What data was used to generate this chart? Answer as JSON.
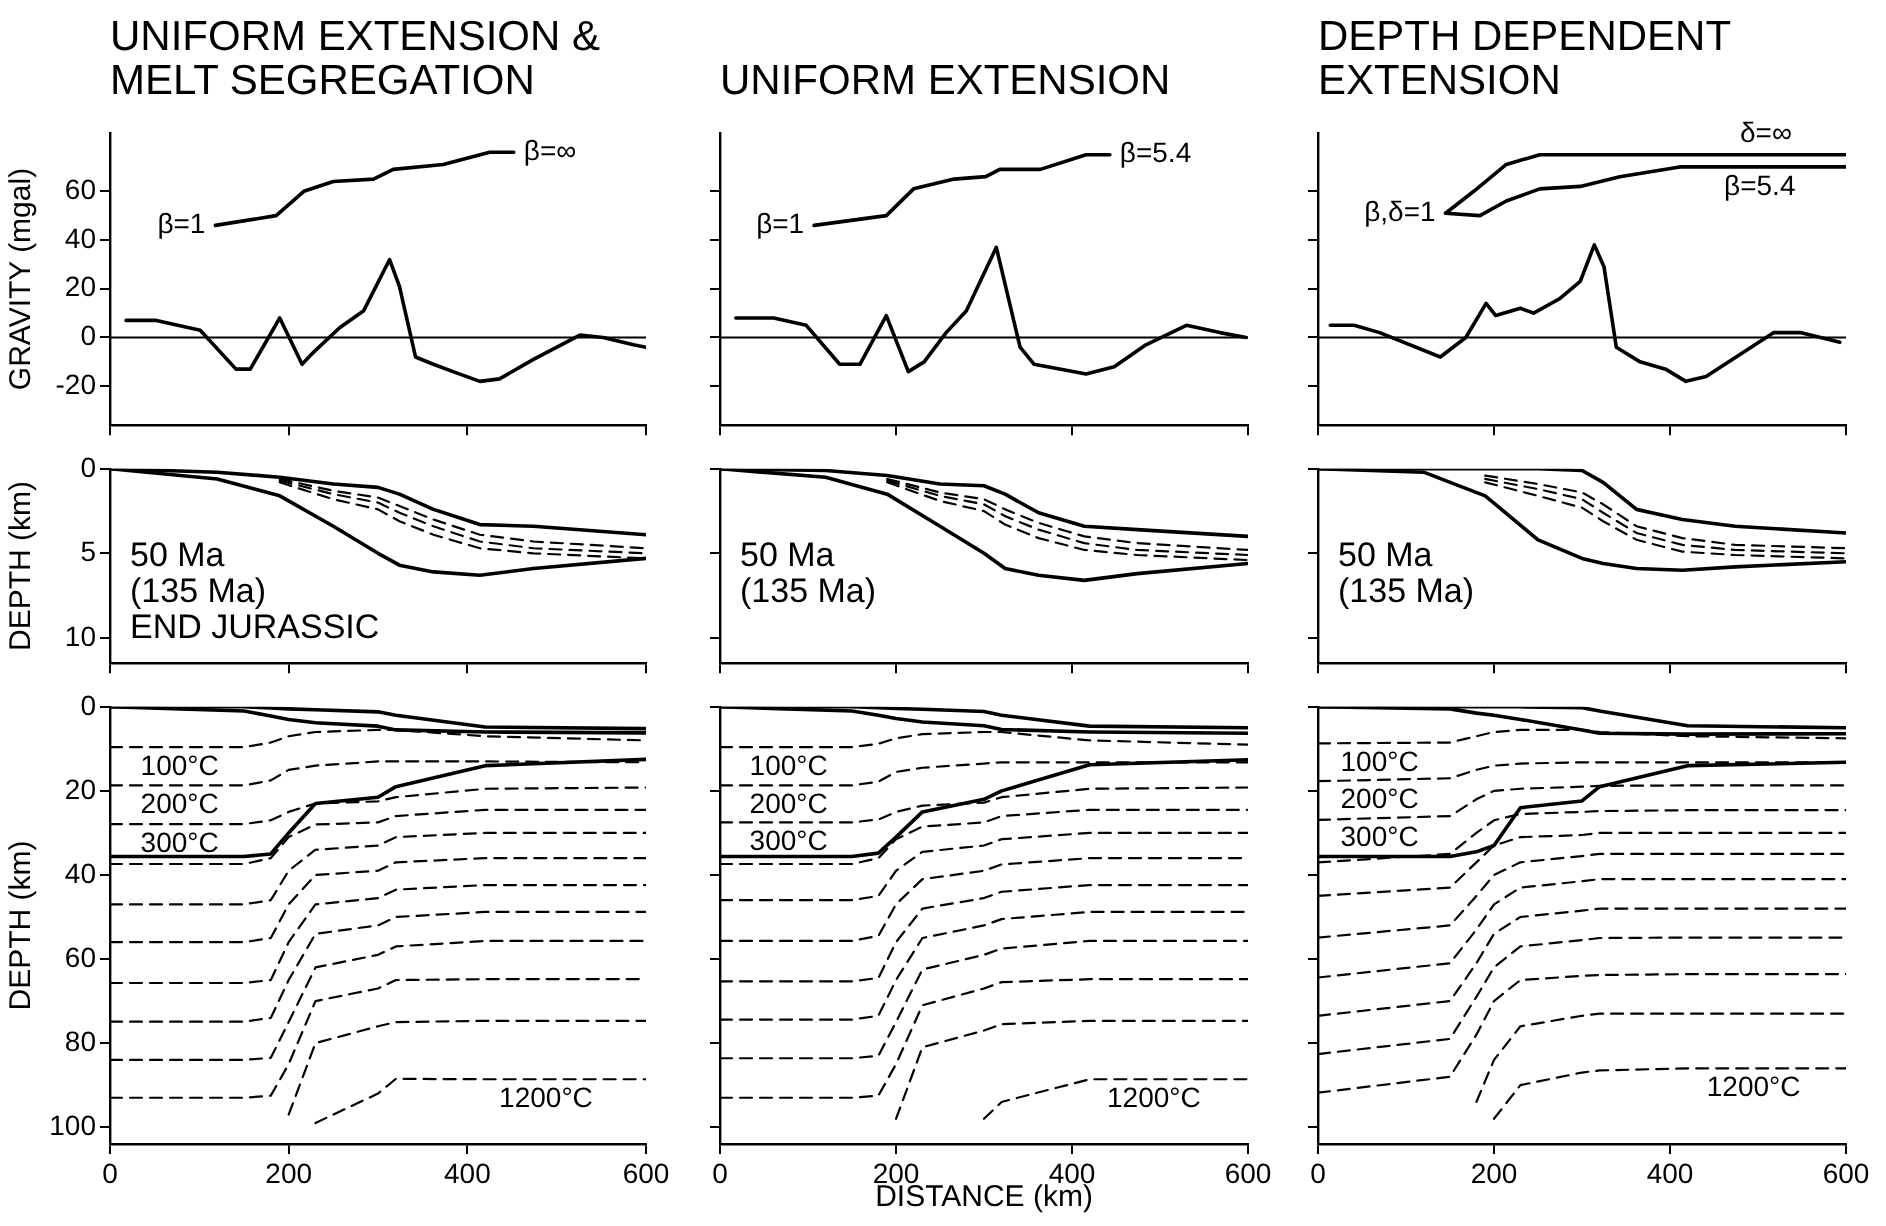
{
  "chart_data": [
    {
      "type": "line",
      "title": "UNIFORM EXTENSION & MELT SEGREGATION",
      "ylabel": "GRAVITY (mgal)",
      "xlim": [
        0,
        600
      ],
      "ylim": [
        -36,
        84
      ],
      "xticks": [
        0,
        200,
        400,
        600
      ],
      "yticks": [
        -20,
        0,
        20,
        40,
        60
      ],
      "tick_labels": "y",
      "ref_lines": [
        {
          "axis": "y",
          "value": 0,
          "color": "#000000"
        }
      ],
      "annotations": [
        {
          "text": "β=1",
          "x": 118,
          "y": 46
        },
        {
          "text": "β=∞",
          "x": 452,
          "y": 76
        }
      ],
      "series": [
        {
          "color": "#000000",
          "line_style": "solid",
          "x": [
            118,
            186,
            217,
            250,
            295,
            317,
            373,
            425,
            452
          ],
          "values": [
            46,
            50,
            60,
            64,
            65,
            69,
            71,
            76,
            76
          ]
        },
        {
          "color": "#000000",
          "line_style": "solid",
          "x": [
            18,
            52,
            101,
            141,
            157,
            190,
            215,
            228,
            257,
            284,
            313,
            324,
            342,
            362,
            384,
            414,
            436,
            474,
            526,
            552,
            586,
            600
          ],
          "values": [
            7,
            7,
            3,
            -13,
            -13,
            8,
            -11,
            -6,
            4,
            11,
            32,
            21,
            -8,
            -11,
            -14,
            -18,
            -17,
            -9,
            1,
            0,
            -3,
            -4
          ]
        }
      ]
    },
    {
      "type": "line",
      "title": "UNIFORM EXTENSION",
      "xlim": [
        0,
        600
      ],
      "ylim": [
        -36,
        84
      ],
      "xticks": [
        0,
        200,
        400,
        600
      ],
      "yticks": [
        -20,
        0,
        20,
        40,
        60
      ],
      "tick_labels": false,
      "ref_lines": [
        {
          "axis": "y",
          "value": 0,
          "color": "#000000"
        }
      ],
      "annotations": [
        {
          "text": "β=1",
          "x": 107,
          "y": 46
        },
        {
          "text": "β=5.4",
          "x": 443,
          "y": 75
        }
      ],
      "series": [
        {
          "color": "#000000",
          "line_style": "solid",
          "x": [
            107,
            189,
            220,
            266,
            302,
            318,
            364,
            416,
            443
          ],
          "values": [
            46,
            50,
            61,
            65,
            66,
            69,
            69,
            75,
            75
          ]
        },
        {
          "color": "#000000",
          "line_style": "solid",
          "x": [
            18,
            61,
            98,
            136,
            159,
            189,
            214,
            232,
            257,
            280,
            314,
            341,
            357,
            416,
            448,
            484,
            530,
            568,
            598
          ],
          "values": [
            8,
            8,
            5,
            -11,
            -11,
            9,
            -14,
            -10,
            2,
            11,
            37,
            -4,
            -11,
            -15,
            -12,
            -3,
            5,
            2,
            0
          ]
        }
      ]
    },
    {
      "type": "line",
      "title": "DEPTH DEPENDENT EXTENSION",
      "xlim": [
        0,
        600
      ],
      "ylim": [
        -36,
        84
      ],
      "xticks": [
        0,
        200,
        400,
        600
      ],
      "yticks": [
        -20,
        0,
        20,
        40,
        60
      ],
      "tick_labels": false,
      "ref_lines": [
        {
          "axis": "y",
          "value": 0,
          "color": "#000000"
        }
      ],
      "annotations": [
        {
          "text": "β,δ=1",
          "x": 145,
          "y": 51
        },
        {
          "text": "δ=∞",
          "x": 509,
          "y": 75
        },
        {
          "text": "β=5.4",
          "x": 502,
          "y": 70
        }
      ],
      "series": [
        {
          "color": "#000000",
          "line_style": "solid",
          "x": [
            145,
            177,
            214,
            252,
            336,
            600
          ],
          "values": [
            51,
            60,
            71,
            75,
            75,
            75
          ]
        },
        {
          "color": "#000000",
          "line_style": "solid",
          "x": [
            145,
            184,
            214,
            252,
            298,
            343,
            411,
            600
          ],
          "values": [
            51,
            50,
            56,
            61,
            62,
            66,
            70,
            70
          ]
        },
        {
          "color": "#000000",
          "line_style": "solid",
          "x": [
            14,
            41,
            70,
            139,
            168,
            191,
            202,
            230,
            245,
            275,
            298,
            314,
            325,
            339,
            366,
            395,
            418,
            441,
            518,
            548,
            593
          ],
          "values": [
            5,
            5,
            2,
            -8,
            0,
            14,
            9,
            12,
            10,
            16,
            23,
            38,
            29,
            -4,
            -10,
            -13,
            -18,
            -16,
            2,
            2,
            -2
          ]
        }
      ]
    },
    {
      "type": "line",
      "ylabel": "DEPTH (km)",
      "xlim": [
        0,
        600
      ],
      "ylim": [
        11.5,
        0
      ],
      "xticks": [
        0,
        200,
        400,
        600
      ],
      "yticks": [
        0,
        5,
        10
      ],
      "tick_labels": "y",
      "annotations": [
        "50 Ma",
        "(135 Ma)",
        "END JURASSIC"
      ],
      "x": [
        0,
        120,
        190,
        250,
        300,
        324,
        362,
        414,
        474,
        600
      ],
      "series": [
        {
          "color": "#000000",
          "line_style": "solid",
          "values": [
            0,
            0.2,
            0.5,
            0.9,
            1.1,
            1.5,
            2.4,
            3.3,
            3.4,
            3.9
          ]
        },
        {
          "color": "#000000",
          "line_style": "solid",
          "values": [
            0,
            0.6,
            1.6,
            3.4,
            5,
            5.7,
            6.1,
            6.3,
            5.9,
            5.3
          ]
        },
        {
          "color": "#000000",
          "line_style": "dashed",
          "values": [
            null,
            null,
            0.6,
            1.3,
            1.7,
            2.2,
            3,
            3.9,
            4.3,
            4.7
          ]
        },
        {
          "color": "#000000",
          "line_style": "dashed",
          "values": [
            null,
            null,
            0.7,
            1.5,
            2,
            2.6,
            3.4,
            4.3,
            4.7,
            5
          ]
        },
        {
          "color": "#000000",
          "line_style": "dashed",
          "values": [
            null,
            null,
            0.8,
            1.8,
            2.4,
            3.1,
            3.9,
            4.7,
            5,
            5.3
          ]
        }
      ]
    },
    {
      "type": "line",
      "xlim": [
        0,
        600
      ],
      "ylim": [
        11.5,
        0
      ],
      "xticks": [
        0,
        200,
        400,
        600
      ],
      "yticks": [
        0,
        5,
        10
      ],
      "tick_labels": false,
      "annotations": [
        "50 Ma",
        "(135 Ma)"
      ],
      "x": [
        0,
        120,
        190,
        250,
        300,
        324,
        362,
        414,
        474,
        600
      ],
      "series": [
        {
          "color": "#000000",
          "line_style": "solid",
          "values": [
            0,
            0.1,
            0.4,
            0.9,
            1,
            1.5,
            2.6,
            3.4,
            3.6,
            4
          ]
        },
        {
          "color": "#000000",
          "line_style": "solid",
          "values": [
            0,
            0.5,
            1.5,
            3.4,
            5,
            5.9,
            6.3,
            6.6,
            6.2,
            5.6
          ]
        },
        {
          "color": "#000000",
          "line_style": "dashed",
          "values": [
            null,
            null,
            0.6,
            1.4,
            1.8,
            2.4,
            3.2,
            4,
            4.4,
            4.8
          ]
        },
        {
          "color": "#000000",
          "line_style": "dashed",
          "values": [
            null,
            null,
            0.7,
            1.6,
            2.1,
            2.8,
            3.6,
            4.4,
            4.8,
            5.1
          ]
        },
        {
          "color": "#000000",
          "line_style": "dashed",
          "values": [
            null,
            null,
            0.8,
            1.9,
            2.5,
            3.3,
            4.1,
            4.8,
            5.1,
            5.4
          ]
        }
      ]
    },
    {
      "type": "line",
      "xlim": [
        0,
        600
      ],
      "ylim": [
        11.5,
        0
      ],
      "xticks": [
        0,
        200,
        400,
        600
      ],
      "yticks": [
        0,
        5,
        10
      ],
      "tick_labels": false,
      "annotations": [
        "50 Ma",
        "(135 Ma)"
      ],
      "x": [
        0,
        120,
        190,
        250,
        300,
        324,
        362,
        414,
        474,
        600
      ],
      "series": [
        {
          "color": "#000000",
          "line_style": "solid",
          "values": [
            0,
            0,
            0,
            0,
            0.1,
            0.8,
            2.4,
            3,
            3.4,
            3.8
          ]
        },
        {
          "color": "#000000",
          "line_style": "solid",
          "values": [
            0,
            0.2,
            1.6,
            4.2,
            5.3,
            5.6,
            5.9,
            6,
            5.8,
            5.5
          ]
        },
        {
          "color": "#000000",
          "line_style": "dashed",
          "values": [
            null,
            null,
            0.4,
            0.9,
            1.4,
            2.1,
            3.4,
            4.1,
            4.5,
            4.7
          ]
        },
        {
          "color": "#000000",
          "line_style": "dashed",
          "values": [
            null,
            null,
            0.6,
            1.2,
            1.8,
            2.6,
            3.8,
            4.5,
            4.8,
            5
          ]
        },
        {
          "color": "#000000",
          "line_style": "dashed",
          "values": [
            null,
            null,
            0.8,
            1.6,
            2.3,
            3.1,
            4.2,
            4.9,
            5.1,
            5.3
          ]
        }
      ]
    },
    {
      "type": "line",
      "ylabel": "DEPTH (km)",
      "xlim": [
        0,
        600
      ],
      "ylim": [
        104,
        0
      ],
      "xticks": [
        0,
        200,
        400,
        600
      ],
      "yticks": [
        0,
        20,
        40,
        60,
        80,
        100
      ],
      "annotations": [
        {
          "text": "100°C",
          "x": 78,
          "y": 9.6
        },
        {
          "text": "200°C",
          "x": 78,
          "y": 18.7
        },
        {
          "text": "300°C",
          "x": 78,
          "y": 27.9
        },
        {
          "text": "1200°C",
          "x": 488,
          "y": 88.6
        }
      ],
      "x": [
        0,
        150,
        180,
        200,
        230,
        300,
        320,
        420,
        600
      ],
      "series": [
        {
          "color": "#000000",
          "line_style": "solid",
          "values": [
            0,
            0,
            0.3,
            0.5,
            0.7,
            1.2,
            2,
            4.8,
            5.2
          ]
        },
        {
          "color": "#000000",
          "line_style": "solid",
          "values": [
            0,
            1,
            2.2,
            3,
            3.8,
            4.6,
            5.5,
            6,
            6.2
          ]
        },
        {
          "color": "#000000",
          "line_style": "solid",
          "values": [
            35.6,
            35.6,
            35,
            30,
            23,
            21.5,
            19,
            14,
            12.5
          ]
        },
        {
          "color": "#000000",
          "line_style": "dashed",
          "values": [
            9.6,
            9.6,
            8.5,
            7,
            6,
            5.5,
            5.5,
            7,
            8
          ]
        },
        {
          "color": "#000000",
          "line_style": "dashed",
          "values": [
            18.7,
            18.7,
            17.5,
            15,
            14,
            13,
            13,
            13,
            13.2
          ]
        },
        {
          "color": "#000000",
          "line_style": "dashed",
          "values": [
            27.9,
            27.9,
            27,
            25,
            23,
            22.5,
            21.5,
            19.5,
            19.2
          ]
        },
        {
          "color": "#000000",
          "line_style": "dashed",
          "values": [
            37.4,
            37.4,
            36,
            31,
            28,
            27.5,
            26,
            24.5,
            24.5
          ]
        },
        {
          "color": "#000000",
          "line_style": "dashed",
          "values": [
            47,
            47,
            46,
            39,
            34,
            33,
            31,
            30,
            30
          ]
        },
        {
          "color": "#000000",
          "line_style": "dashed",
          "values": [
            56,
            56,
            55,
            47,
            40,
            39,
            37,
            36,
            36
          ]
        },
        {
          "color": "#000000",
          "line_style": "dashed",
          "values": [
            65.7,
            65.7,
            65,
            56,
            47,
            45.5,
            43.5,
            42.4,
            42.4
          ]
        },
        {
          "color": "#000000",
          "line_style": "dashed",
          "values": [
            74.9,
            74.9,
            74,
            65,
            54,
            52,
            50,
            48.8,
            48.8
          ]
        },
        {
          "color": "#000000",
          "line_style": "dashed",
          "values": [
            84,
            84,
            83.5,
            75,
            62,
            59,
            57,
            55.7,
            55.7
          ]
        },
        {
          "color": "#000000",
          "line_style": "dashed",
          "values": [
            93,
            93,
            92.5,
            85,
            70,
            67,
            65,
            64.8,
            64.8
          ]
        },
        {
          "color": "#000000",
          "line_style": "dashed",
          "values": [
            null,
            null,
            null,
            97,
            80,
            76,
            75,
            74.7,
            74.7
          ]
        },
        {
          "color": "#000000",
          "line_style": "dashed",
          "values": [
            null,
            null,
            null,
            null,
            99,
            92,
            88.5,
            88.6,
            88.6
          ]
        }
      ]
    },
    {
      "type": "line",
      "xlabel": "DISTANCE (km)",
      "xlim": [
        0,
        600
      ],
      "ylim": [
        104,
        0
      ],
      "xticks": [
        0,
        200,
        400,
        600
      ],
      "yticks": [
        0,
        20,
        40,
        60,
        80,
        100
      ],
      "tick_labels": "x",
      "annotations": [
        {
          "text": "100°C",
          "x": 78,
          "y": 9.6
        },
        {
          "text": "200°C",
          "x": 78,
          "y": 18.7
        },
        {
          "text": "300°C",
          "x": 78,
          "y": 27.5
        },
        {
          "text": "1200°C",
          "x": 493,
          "y": 88.6
        }
      ],
      "x": [
        0,
        150,
        180,
        200,
        230,
        300,
        320,
        420,
        600
      ],
      "series": [
        {
          "color": "#000000",
          "line_style": "solid",
          "values": [
            0,
            0,
            0.2,
            0.4,
            0.6,
            1.1,
            2,
            4.6,
            5
          ]
        },
        {
          "color": "#000000",
          "line_style": "solid",
          "values": [
            0,
            1,
            2,
            2.8,
            3.6,
            4.5,
            5.4,
            6,
            6.3
          ]
        },
        {
          "color": "#000000",
          "line_style": "solid",
          "values": [
            35.6,
            35.6,
            34.8,
            31,
            25,
            22,
            20,
            13.8,
            12.6
          ]
        },
        {
          "color": "#000000",
          "line_style": "dashed",
          "values": [
            9.6,
            9.6,
            8.8,
            7.5,
            6.5,
            6,
            6,
            8,
            9
          ]
        },
        {
          "color": "#000000",
          "line_style": "dashed",
          "values": [
            18.7,
            18.7,
            17.8,
            15.5,
            14.5,
            13.5,
            13.2,
            13.2,
            13.2
          ]
        },
        {
          "color": "#000000",
          "line_style": "dashed",
          "values": [
            27.5,
            27.5,
            26.8,
            25,
            23.5,
            22.8,
            21.5,
            19.5,
            19.2
          ]
        },
        {
          "color": "#000000",
          "line_style": "dashed",
          "values": [
            37.4,
            37.4,
            36,
            31.5,
            28.5,
            27.5,
            26,
            24.5,
            24.5
          ]
        },
        {
          "color": "#000000",
          "line_style": "dashed",
          "values": [
            46,
            46,
            45,
            39,
            34.5,
            33,
            31.5,
            30,
            30
          ]
        },
        {
          "color": "#000000",
          "line_style": "dashed",
          "values": [
            55.7,
            55.7,
            54.5,
            47,
            41,
            39,
            37.5,
            36,
            36
          ]
        },
        {
          "color": "#000000",
          "line_style": "dashed",
          "values": [
            65.3,
            65.3,
            64.5,
            56,
            48,
            45.5,
            44,
            42.4,
            42.4
          ]
        },
        {
          "color": "#000000",
          "line_style": "dashed",
          "values": [
            74.4,
            74.4,
            73.5,
            65,
            55,
            52,
            50.5,
            48.8,
            48.8
          ]
        },
        {
          "color": "#000000",
          "line_style": "dashed",
          "values": [
            83.6,
            83.6,
            83,
            75,
            62.5,
            59,
            57.5,
            55.7,
            55.7
          ]
        },
        {
          "color": "#000000",
          "line_style": "dashed",
          "values": [
            93,
            93,
            92.5,
            85,
            71,
            67,
            65.5,
            64.8,
            64.8
          ]
        },
        {
          "color": "#000000",
          "line_style": "dashed",
          "values": [
            null,
            null,
            null,
            98,
            81,
            77,
            75.5,
            74.7,
            74.7
          ]
        },
        {
          "color": "#000000",
          "line_style": "dashed",
          "values": [
            null,
            null,
            null,
            null,
            null,
            98,
            94,
            88.6,
            88.6
          ]
        }
      ]
    },
    {
      "type": "line",
      "xlim": [
        0,
        600
      ],
      "ylim": [
        104,
        0
      ],
      "xticks": [
        0,
        200,
        400,
        600
      ],
      "yticks": [
        0,
        20,
        40,
        60,
        80,
        100
      ],
      "tick_labels": "x",
      "annotations": [
        {
          "text": "100°C",
          "x": 70,
          "y": 8.6
        },
        {
          "text": "200°C",
          "x": 70,
          "y": 17.4
        },
        {
          "text": "300°C",
          "x": 70,
          "y": 26.5
        },
        {
          "text": "1200°C",
          "x": 495,
          "y": 86
        }
      ],
      "x": [
        0,
        150,
        180,
        200,
        230,
        300,
        320,
        420,
        600
      ],
      "series": [
        {
          "color": "#000000",
          "line_style": "solid",
          "values": [
            0,
            0,
            0,
            0,
            0,
            0.2,
            1,
            4.5,
            5
          ]
        },
        {
          "color": "#000000",
          "line_style": "solid",
          "values": [
            0,
            0.5,
            1.5,
            2,
            3,
            5.5,
            6.3,
            6.5,
            6.4
          ]
        },
        {
          "color": "#000000",
          "line_style": "solid",
          "values": [
            35.6,
            35.6,
            34.5,
            33,
            24,
            22.4,
            19,
            14,
            13.2
          ]
        },
        {
          "color": "#000000",
          "line_style": "dashed",
          "values": [
            8.7,
            8.5,
            7,
            6,
            5.5,
            5.5,
            6,
            7,
            7.5
          ]
        },
        {
          "color": "#000000",
          "line_style": "dashed",
          "values": [
            17.7,
            17,
            15,
            14,
            13.5,
            13.2,
            13.2,
            13.2,
            13.2
          ]
        },
        {
          "color": "#000000",
          "line_style": "dashed",
          "values": [
            26.9,
            26,
            22,
            20,
            19.5,
            19,
            18.8,
            18.7,
            18.7
          ]
        },
        {
          "color": "#000000",
          "line_style": "dashed",
          "values": [
            37,
            35,
            30,
            27,
            25.5,
            25,
            24.8,
            24.6,
            24.6
          ]
        },
        {
          "color": "#000000",
          "line_style": "dashed",
          "values": [
            45,
            43,
            37,
            33,
            31,
            30.5,
            30,
            30,
            30
          ]
        },
        {
          "color": "#000000",
          "line_style": "dashed",
          "values": [
            54.9,
            52,
            45,
            40,
            37,
            35.5,
            35,
            35,
            35
          ]
        },
        {
          "color": "#000000",
          "line_style": "dashed",
          "values": [
            64.4,
            61,
            53,
            47,
            43,
            41.5,
            41,
            41,
            41
          ]
        },
        {
          "color": "#000000",
          "line_style": "dashed",
          "values": [
            73.5,
            70,
            61,
            54,
            50,
            48.5,
            48,
            48,
            48
          ]
        },
        {
          "color": "#000000",
          "line_style": "dashed",
          "values": [
            82.6,
            79,
            69,
            62,
            57,
            55.5,
            55,
            54.9,
            54.9
          ]
        },
        {
          "color": "#000000",
          "line_style": "dashed",
          "values": [
            91.8,
            88,
            78,
            70,
            65,
            64,
            63.8,
            63.6,
            63.6
          ]
        },
        {
          "color": "#000000",
          "line_style": "dashed",
          "values": [
            null,
            null,
            94,
            84,
            76,
            73.5,
            73,
            73,
            73
          ]
        },
        {
          "color": "#000000",
          "line_style": "dashed",
          "values": [
            null,
            null,
            null,
            98,
            90,
            87,
            86.5,
            86,
            86
          ]
        }
      ]
    }
  ]
}
